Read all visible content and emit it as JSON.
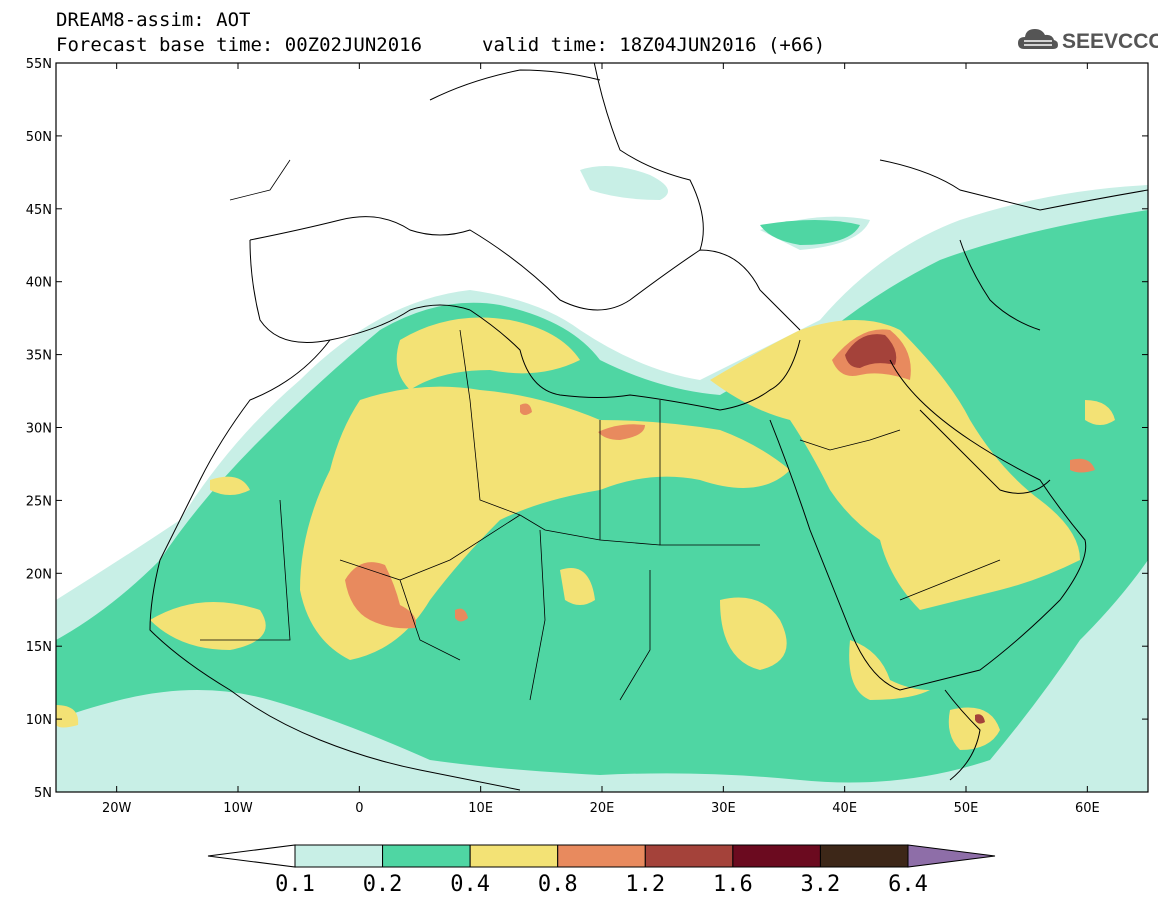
{
  "header": {
    "title_line1": "DREAM8-assim: AOT",
    "forecast_base": "Forecast base time: 00Z02JUN2016",
    "valid_time": "valid time: 18Z04JUN2016 (+66)",
    "logo_text": "SEEVCCC",
    "logo_icon": "cloud-icon"
  },
  "map": {
    "lon_range": [
      -25,
      65
    ],
    "lat_range": [
      5,
      55
    ],
    "lat_labels": [
      "55N",
      "50N",
      "45N",
      "40N",
      "35N",
      "30N",
      "25N",
      "20N",
      "15N",
      "10N",
      "5N"
    ],
    "lon_labels": [
      "20W",
      "10W",
      "0",
      "10E",
      "20E",
      "30E",
      "40E",
      "50E",
      "60E"
    ],
    "background_color": "#ffffff",
    "border_color": "#000000"
  },
  "colorbar": {
    "thresholds": [
      "0.1",
      "0.2",
      "0.4",
      "0.8",
      "1.2",
      "1.6",
      "3.2",
      "6.4"
    ],
    "colors": [
      "#ffffff",
      "#c8efe6",
      "#4fd6a3",
      "#f3e275",
      "#e88a5e",
      "#a4423a",
      "#6b0a1f",
      "#3d2718",
      "#8e6ea8"
    ]
  },
  "legend_items": [
    {
      "range": "0.1-0.2",
      "color": "#c8efe6"
    },
    {
      "range": "0.2-0.4",
      "color": "#4fd6a3"
    },
    {
      "range": "0.4-0.8",
      "color": "#f3e275"
    },
    {
      "range": "0.8-1.2",
      "color": "#e88a5e"
    },
    {
      "range": "1.2-1.6",
      "color": "#a4423a"
    },
    {
      "range": "1.6-3.2",
      "color": "#6b0a1f"
    },
    {
      "range": "3.2-6.4",
      "color": "#3d2718"
    }
  ]
}
